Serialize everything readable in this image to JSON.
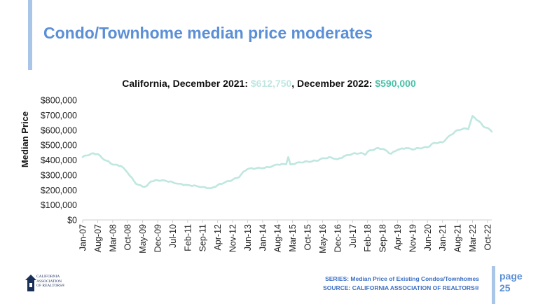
{
  "slide": {
    "title": "Condo/Townhome median price moderates",
    "subtitle_prefix": "California, December 2021: ",
    "subtitle_value_2021": "$612,750",
    "subtitle_mid": ", December 2022: ",
    "subtitle_value_2022": "$590,000",
    "footer_series": "SERIES: Median Price of Existing Condos/Townhomes",
    "footer_source": "SOURCE: CALIFORNIA ASSOCIATION OF REALTORS®",
    "page_word": "page",
    "page_number": "25",
    "logo_text": "CALIFORNIA\nASSOCIATION\nOF REALTORS®"
  },
  "colors": {
    "title": "#5b8fd6",
    "accent_bar": "#a9c6e8",
    "line": "#bfe7e0",
    "value_2022": "#48c0a8",
    "footer": "#3b6fc4"
  },
  "chart_data": {
    "type": "line",
    "ylabel": "Median Price",
    "xlabel": "",
    "ylim": [
      0,
      800000
    ],
    "yticks": [
      0,
      100000,
      200000,
      300000,
      400000,
      500000,
      600000,
      700000,
      800000
    ],
    "ytick_labels": [
      "$0",
      "$100,000",
      "$200,000",
      "$300,000",
      "$400,000",
      "$500,000",
      "$600,000",
      "$700,000",
      "$800,000"
    ],
    "xtick_labels": [
      "Jan-07",
      "Aug-07",
      "Mar-08",
      "Oct-08",
      "May-09",
      "Dec-09",
      "Jul-10",
      "Feb-11",
      "Sep-11",
      "Apr-12",
      "Nov-12",
      "Jun-13",
      "Jan-14",
      "Aug-14",
      "Mar-15",
      "Oct-15",
      "May-16",
      "Dec-16",
      "Jul-17",
      "Feb-18",
      "Sep-18",
      "Apr-19",
      "Nov-19",
      "Jun-20",
      "Jan-21",
      "Aug-21",
      "Mar-22",
      "Oct-22"
    ],
    "grid": false,
    "legend": "none",
    "x_start": "Jan-07",
    "x_end": "Dec-22",
    "anchors": [
      {
        "x": "Jan-07",
        "y": 420000
      },
      {
        "x": "May-07",
        "y": 443000
      },
      {
        "x": "Aug-07",
        "y": 440000
      },
      {
        "x": "Oct-07",
        "y": 415000
      },
      {
        "x": "Mar-08",
        "y": 370000
      },
      {
        "x": "Jul-08",
        "y": 360000
      },
      {
        "x": "Oct-08",
        "y": 315000
      },
      {
        "x": "Feb-09",
        "y": 240000
      },
      {
        "x": "May-09",
        "y": 222000
      },
      {
        "x": "Jul-09",
        "y": 228000
      },
      {
        "x": "Sep-09",
        "y": 258000
      },
      {
        "x": "Dec-09",
        "y": 265000
      },
      {
        "x": "Mar-10",
        "y": 265000
      },
      {
        "x": "Jul-10",
        "y": 252000
      },
      {
        "x": "Oct-10",
        "y": 242000
      },
      {
        "x": "Feb-11",
        "y": 233000
      },
      {
        "x": "Jun-11",
        "y": 228000
      },
      {
        "x": "Sep-11",
        "y": 220000
      },
      {
        "x": "Jan-12",
        "y": 212000
      },
      {
        "x": "Apr-12",
        "y": 232000
      },
      {
        "x": "Jul-12",
        "y": 248000
      },
      {
        "x": "Nov-12",
        "y": 268000
      },
      {
        "x": "Feb-13",
        "y": 285000
      },
      {
        "x": "Apr-13",
        "y": 322000
      },
      {
        "x": "Jun-13",
        "y": 340000
      },
      {
        "x": "Oct-13",
        "y": 345000
      },
      {
        "x": "Jan-14",
        "y": 345000
      },
      {
        "x": "May-14",
        "y": 355000
      },
      {
        "x": "Aug-14",
        "y": 370000
      },
      {
        "x": "Dec-14",
        "y": 372000
      },
      {
        "x": "Jan-15",
        "y": 420000
      },
      {
        "x": "Feb-15",
        "y": 370000
      },
      {
        "x": "Jun-15",
        "y": 385000
      },
      {
        "x": "Oct-15",
        "y": 390000
      },
      {
        "x": "Feb-16",
        "y": 395000
      },
      {
        "x": "May-16",
        "y": 412000
      },
      {
        "x": "Sep-16",
        "y": 418000
      },
      {
        "x": "Dec-16",
        "y": 405000
      },
      {
        "x": "Apr-17",
        "y": 432000
      },
      {
        "x": "Jul-17",
        "y": 442000
      },
      {
        "x": "Nov-17",
        "y": 448000
      },
      {
        "x": "Jan-18",
        "y": 435000
      },
      {
        "x": "Feb-18",
        "y": 455000
      },
      {
        "x": "Jun-18",
        "y": 478000
      },
      {
        "x": "Sep-18",
        "y": 475000
      },
      {
        "x": "Jan-19",
        "y": 442000
      },
      {
        "x": "Apr-19",
        "y": 468000
      },
      {
        "x": "Aug-19",
        "y": 480000
      },
      {
        "x": "Nov-19",
        "y": 470000
      },
      {
        "x": "Feb-20",
        "y": 480000
      },
      {
        "x": "Jun-20",
        "y": 485000
      },
      {
        "x": "Sep-20",
        "y": 515000
      },
      {
        "x": "Jan-21",
        "y": 518000
      },
      {
        "x": "Apr-21",
        "y": 560000
      },
      {
        "x": "Aug-21",
        "y": 600000
      },
      {
        "x": "Nov-21",
        "y": 612000
      },
      {
        "x": "Jan-22",
        "y": 605000
      },
      {
        "x": "Mar-22",
        "y": 695000
      },
      {
        "x": "Jun-22",
        "y": 660000
      },
      {
        "x": "Aug-22",
        "y": 625000
      },
      {
        "x": "Oct-22",
        "y": 615000
      },
      {
        "x": "Dec-22",
        "y": 590000
      }
    ]
  }
}
